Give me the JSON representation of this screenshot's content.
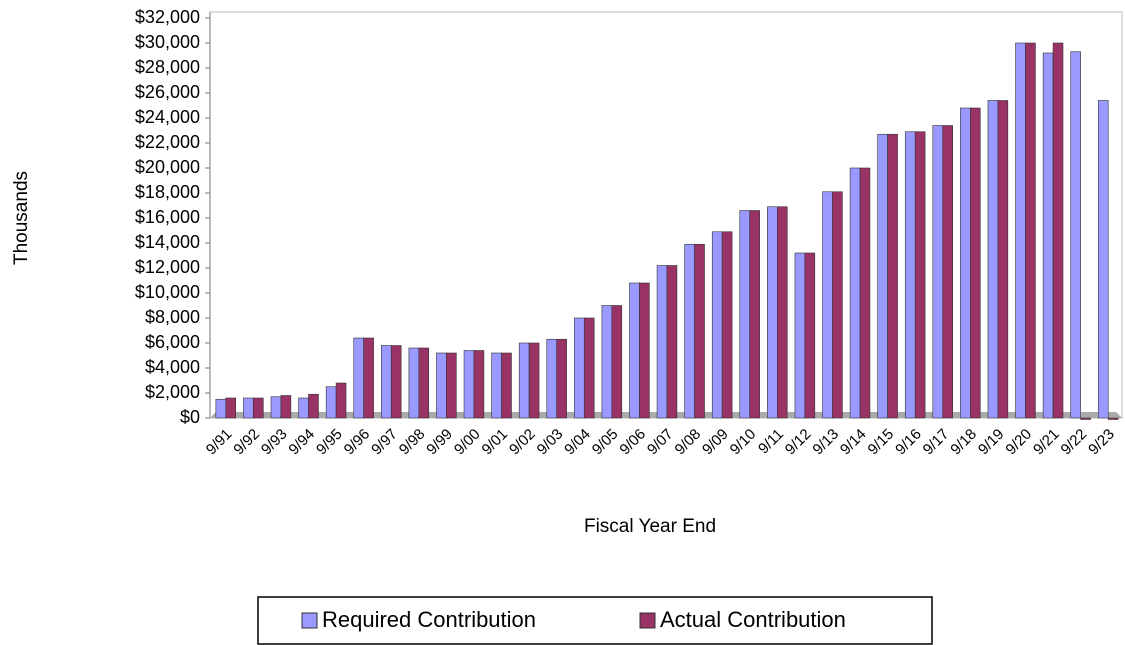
{
  "chart_data": {
    "type": "bar",
    "x_label": "Fiscal Year End",
    "y_label": "Thousands",
    "categories": [
      "9/91",
      "9/92",
      "9/93",
      "9/94",
      "9/95",
      "9/96",
      "9/97",
      "9/98",
      "9/99",
      "9/00",
      "9/01",
      "9/02",
      "9/03",
      "9/04",
      "9/05",
      "9/06",
      "9/07",
      "9/08",
      "9/09",
      "9/10",
      "9/11",
      "9/12",
      "9/13",
      "9/14",
      "9/15",
      "9/16",
      "9/17",
      "9/18",
      "9/19",
      "9/20",
      "9/21",
      "9/22",
      "9/23"
    ],
    "series": [
      {
        "name": "Required Contribution",
        "color": "#9999ff",
        "values": [
          1500,
          1600,
          1700,
          1600,
          2500,
          6400,
          5800,
          5600,
          5200,
          5400,
          5200,
          6000,
          6300,
          8000,
          9000,
          10800,
          12200,
          13900,
          14900,
          16600,
          16900,
          13200,
          18100,
          20000,
          22700,
          22900,
          23400,
          24800,
          25400,
          30000,
          29200,
          29300,
          25400
        ]
      },
      {
        "name": "Actual Contribution",
        "color": "#993366",
        "values": [
          1600,
          1600,
          1800,
          1900,
          2800,
          6400,
          5800,
          5600,
          5200,
          5400,
          5200,
          6000,
          6300,
          8000,
          9000,
          10800,
          12200,
          13900,
          14900,
          16600,
          16900,
          13200,
          18100,
          20000,
          22700,
          22900,
          23400,
          24800,
          25400,
          30000,
          30000,
          0,
          0
        ]
      }
    ],
    "ylim": [
      0,
      32000
    ],
    "yticks": [
      {
        "value": 0,
        "label": "$0"
      },
      {
        "value": 2000,
        "label": "$2,000"
      },
      {
        "value": 4000,
        "label": "$4,000"
      },
      {
        "value": 6000,
        "label": "$6,000"
      },
      {
        "value": 8000,
        "label": "$8,000"
      },
      {
        "value": 10000,
        "label": "$10,000"
      },
      {
        "value": 12000,
        "label": "$12,000"
      },
      {
        "value": 14000,
        "label": "$14,000"
      },
      {
        "value": 16000,
        "label": "$16,000"
      },
      {
        "value": 18000,
        "label": "$18,000"
      },
      {
        "value": 20000,
        "label": "$20,000"
      },
      {
        "value": 22000,
        "label": "$22,000"
      },
      {
        "value": 24000,
        "label": "$24,000"
      },
      {
        "value": 26000,
        "label": "$26,000"
      },
      {
        "value": 28000,
        "label": "$28,000"
      },
      {
        "value": 30000,
        "label": "$30,000"
      },
      {
        "value": 32000,
        "label": "$32,000"
      }
    ]
  }
}
